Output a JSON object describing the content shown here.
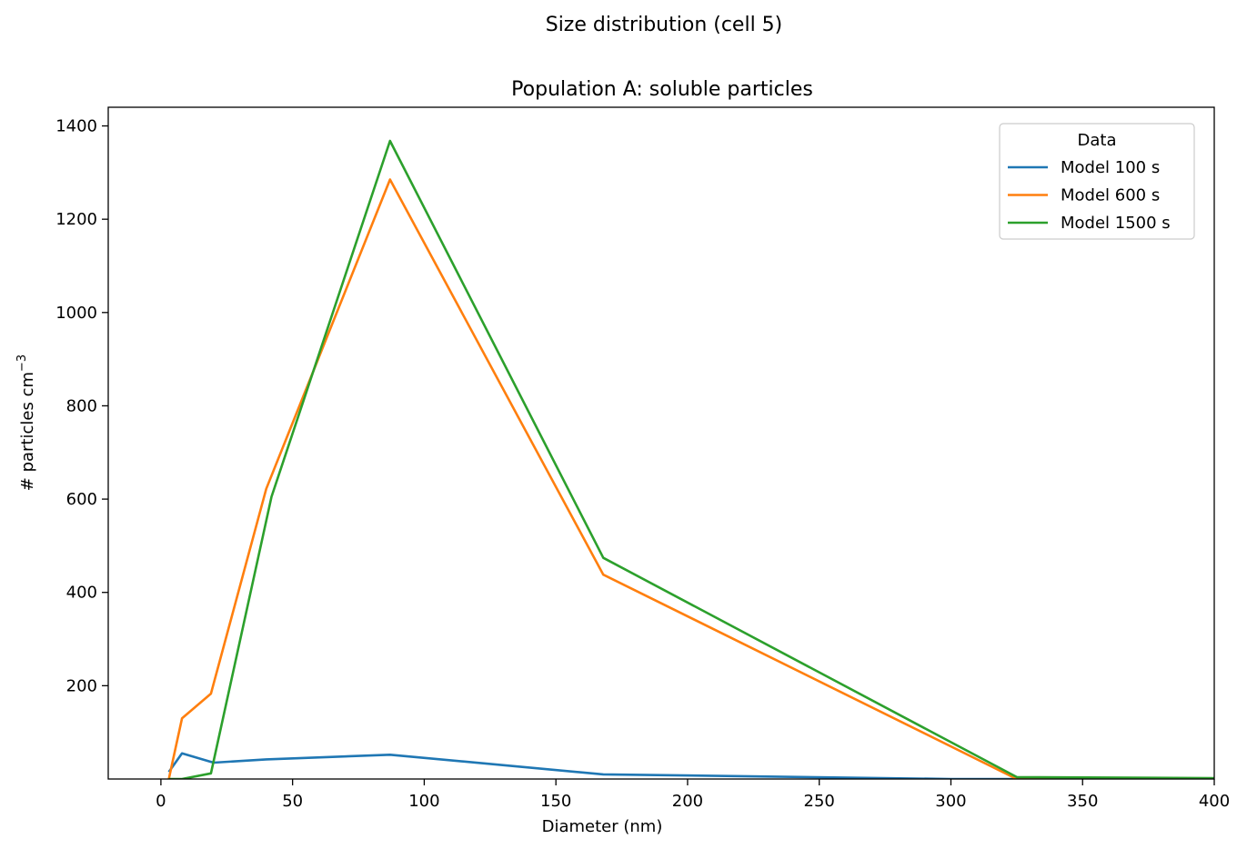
{
  "figure": {
    "suptitle": "Size distribution (cell 5)"
  },
  "chart_data": {
    "type": "line",
    "title": "Population A: soluble particles",
    "xlabel": "Diameter (nm)",
    "ylabel": "# particles cm",
    "ylabel_superscript": "−3",
    "xlim": [
      -20,
      400
    ],
    "ylim": [
      0,
      1440
    ],
    "xticks": [
      0,
      50,
      100,
      150,
      200,
      250,
      300,
      350,
      400
    ],
    "yticks": [
      200,
      400,
      600,
      800,
      1000,
      1200,
      1400
    ],
    "grid": false,
    "legend": {
      "title": "Data",
      "placement": "top-right"
    },
    "series": [
      {
        "name": "Model 100 s",
        "color": "#1f77b4",
        "x": [
          3,
          8,
          20,
          40,
          87,
          168,
          300,
          325,
          400
        ],
        "y": [
          15,
          55,
          35,
          42,
          52,
          10,
          0,
          0,
          0
        ]
      },
      {
        "name": "Model 600 s",
        "color": "#ff7f0e",
        "x": [
          3,
          8,
          19,
          40,
          87,
          168,
          325,
          400
        ],
        "y": [
          0,
          130,
          183,
          622,
          1285,
          438,
          0,
          0
        ]
      },
      {
        "name": "Model 1500 s",
        "color": "#2ca02c",
        "x": [
          3,
          8,
          19,
          42,
          87,
          168,
          325,
          400
        ],
        "y": [
          0,
          0,
          12,
          605,
          1368,
          474,
          4,
          2
        ]
      }
    ]
  }
}
